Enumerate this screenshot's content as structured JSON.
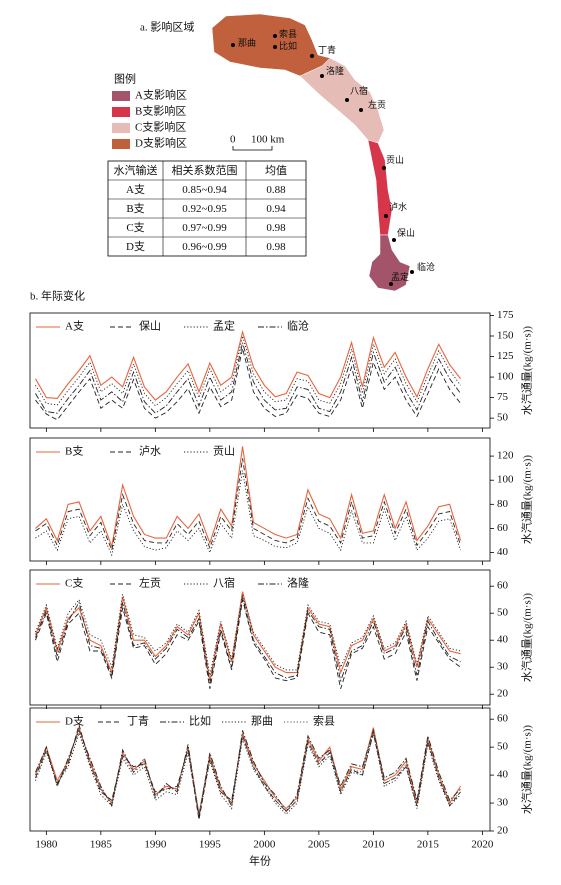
{
  "map": {
    "title": "a. 影响区域",
    "places": [
      "那曲",
      "索县",
      "比如",
      "丁青",
      "洛隆",
      "八宿",
      "左贡",
      "贡山",
      "泸水",
      "保山",
      "孟定",
      "临沧"
    ],
    "legend_title": "图例",
    "legend": [
      {
        "name": "A支影响区",
        "color": "#a3546a"
      },
      {
        "name": "B支影响区",
        "color": "#d7354a"
      },
      {
        "name": "C支影响区",
        "color": "#e6bcb6"
      },
      {
        "name": "D支影响区",
        "color": "#c0603c"
      }
    ],
    "scale_zero": "0",
    "scale_label": "100 km"
  },
  "table": {
    "header": [
      "水汽输送",
      "相关系数范围",
      "均值"
    ],
    "rows": [
      [
        "A支",
        "0.85~0.94",
        "0.88"
      ],
      [
        "B支",
        "0.92~0.95",
        "0.94"
      ],
      [
        "C支",
        "0.97~0.99",
        "0.98"
      ],
      [
        "D支",
        "0.96~0.99",
        "0.98"
      ]
    ]
  },
  "section_title": "b. 年际变化",
  "chart_data": [
    {
      "type": "line",
      "ylabel": "水汽通量(kg/(m·s))",
      "xlim": [
        1978.5,
        2020.7
      ],
      "ylim": [
        38,
        178
      ],
      "yticks": [
        50,
        75,
        100,
        125,
        150,
        175
      ],
      "x": [
        1979,
        1980,
        1981,
        1982,
        1983,
        1984,
        1985,
        1986,
        1987,
        1988,
        1989,
        1990,
        1991,
        1992,
        1993,
        1994,
        1995,
        1996,
        1997,
        1998,
        1999,
        2000,
        2001,
        2002,
        2003,
        2004,
        2005,
        2006,
        2007,
        2008,
        2009,
        2010,
        2011,
        2012,
        2013,
        2014,
        2015,
        2016,
        2017,
        2018
      ],
      "series": [
        {
          "name": "A支",
          "color": "#e8643c",
          "dash": "solid",
          "values": [
            98,
            75,
            74,
            92,
            108,
            126,
            90,
            100,
            88,
            124,
            88,
            72,
            82,
            100,
            116,
            82,
            117,
            90,
            100,
            155,
            112,
            90,
            76,
            80,
            106,
            102,
            80,
            75,
            100,
            142,
            88,
            148,
            112,
            130,
            100,
            76,
            110,
            140,
            115,
            98
          ]
        },
        {
          "name": "保山",
          "color": "#222222",
          "dash": "dashed",
          "values": [
            72,
            55,
            48,
            65,
            82,
            98,
            62,
            72,
            62,
            97,
            62,
            50,
            57,
            70,
            86,
            56,
            88,
            64,
            72,
            135,
            82,
            62,
            52,
            56,
            78,
            74,
            56,
            52,
            72,
            112,
            62,
            118,
            85,
            100,
            72,
            52,
            80,
            110,
            85,
            68
          ]
        },
        {
          "name": "孟定",
          "color": "#222222",
          "dash": "dotted",
          "values": [
            90,
            68,
            66,
            84,
            100,
            118,
            82,
            92,
            80,
            116,
            80,
            65,
            75,
            92,
            108,
            75,
            110,
            82,
            92,
            150,
            104,
            82,
            70,
            72,
            98,
            95,
            72,
            68,
            92,
            134,
            80,
            140,
            104,
            122,
            92,
            70,
            102,
            132,
            108,
            90
          ]
        },
        {
          "name": "临沧",
          "color": "#222222",
          "dash": "dashdot",
          "values": [
            80,
            58,
            56,
            74,
            90,
            108,
            72,
            82,
            70,
            106,
            70,
            56,
            65,
            82,
            98,
            65,
            100,
            72,
            82,
            142,
            94,
            72,
            60,
            62,
            88,
            85,
            62,
            58,
            82,
            124,
            70,
            130,
            94,
            112,
            82,
            60,
            92,
            122,
            98,
            80
          ]
        }
      ]
    },
    {
      "type": "line",
      "ylabel": "水汽通量(kg/(m·s))",
      "xlim": [
        1978.5,
        2020.7
      ],
      "ylim": [
        33,
        135
      ],
      "yticks": [
        40,
        60,
        80,
        100,
        120
      ],
      "x": [
        1979,
        1980,
        1981,
        1982,
        1983,
        1984,
        1985,
        1986,
        1987,
        1988,
        1989,
        1990,
        1991,
        1992,
        1993,
        1994,
        1995,
        1996,
        1997,
        1998,
        1999,
        2000,
        2001,
        2002,
        2003,
        2004,
        2005,
        2006,
        2007,
        2008,
        2009,
        2010,
        2011,
        2012,
        2013,
        2014,
        2015,
        2016,
        2017,
        2018
      ],
      "series": [
        {
          "name": "B支",
          "color": "#e8643c",
          "dash": "solid",
          "values": [
            60,
            68,
            50,
            80,
            82,
            58,
            70,
            45,
            96,
            70,
            55,
            52,
            52,
            70,
            60,
            72,
            48,
            76,
            62,
            128,
            65,
            60,
            55,
            52,
            55,
            92,
            72,
            68,
            52,
            88,
            56,
            58,
            88,
            60,
            82,
            50,
            62,
            78,
            80,
            50
          ]
        },
        {
          "name": "泸水",
          "color": "#222222",
          "dash": "dashed",
          "values": [
            58,
            64,
            46,
            74,
            76,
            54,
            65,
            42,
            88,
            64,
            50,
            48,
            48,
            64,
            55,
            66,
            44,
            70,
            58,
            118,
            60,
            55,
            50,
            48,
            52,
            85,
            66,
            62,
            48,
            82,
            52,
            54,
            82,
            56,
            76,
            46,
            58,
            72,
            74,
            46
          ]
        },
        {
          "name": "贡山",
          "color": "#222222",
          "dash": "dotted",
          "values": [
            52,
            58,
            42,
            68,
            70,
            48,
            58,
            38,
            80,
            58,
            45,
            42,
            44,
            58,
            50,
            60,
            40,
            64,
            52,
            108,
            54,
            50,
            45,
            44,
            48,
            78,
            60,
            56,
            42,
            75,
            48,
            48,
            76,
            50,
            70,
            42,
            52,
            66,
            68,
            42
          ]
        }
      ]
    },
    {
      "type": "line",
      "ylabel": "水汽通量(kg/(m·s))",
      "xlim": [
        1978.5,
        2020.7
      ],
      "ylim": [
        16,
        66
      ],
      "yticks": [
        20,
        30,
        40,
        50,
        60
      ],
      "x": [
        1979,
        1980,
        1981,
        1982,
        1983,
        1984,
        1985,
        1986,
        1987,
        1988,
        1989,
        1990,
        1991,
        1992,
        1993,
        1994,
        1995,
        1996,
        1997,
        1998,
        1999,
        2000,
        2001,
        2002,
        2003,
        2004,
        2005,
        2006,
        2007,
        2008,
        2009,
        2010,
        2011,
        2012,
        2013,
        2014,
        2015,
        2016,
        2017,
        2018
      ],
      "series": [
        {
          "name": "C支",
          "color": "#e8643c",
          "dash": "solid",
          "values": [
            42,
            52,
            36,
            48,
            52,
            40,
            38,
            28,
            56,
            40,
            40,
            34,
            38,
            45,
            42,
            50,
            25,
            46,
            32,
            58,
            42,
            36,
            30,
            28,
            28,
            52,
            46,
            45,
            28,
            38,
            40,
            48,
            36,
            38,
            46,
            30,
            48,
            42,
            36,
            35
          ]
        },
        {
          "name": "左贡",
          "color": "#222222",
          "dash": "dashed",
          "values": [
            40,
            50,
            32,
            46,
            50,
            36,
            36,
            26,
            52,
            37,
            38,
            31,
            35,
            42,
            40,
            47,
            22,
            43,
            29,
            55,
            39,
            33,
            26,
            25,
            26,
            50,
            43,
            42,
            22,
            35,
            37,
            45,
            33,
            35,
            43,
            25,
            45,
            39,
            33,
            30
          ]
        },
        {
          "name": "八宿",
          "color": "#222222",
          "dash": "dotted",
          "values": [
            43,
            53,
            37,
            50,
            55,
            42,
            40,
            30,
            57,
            42,
            41,
            36,
            39,
            46,
            43,
            51,
            27,
            47,
            33,
            57,
            43,
            37,
            31,
            29,
            29,
            53,
            47,
            46,
            30,
            39,
            41,
            49,
            37,
            39,
            47,
            31,
            49,
            43,
            37,
            36
          ]
        },
        {
          "name": "洛隆",
          "color": "#222222",
          "dash": "dashdot",
          "values": [
            41,
            51,
            34,
            47,
            54,
            38,
            37,
            27,
            54,
            38,
            39,
            33,
            37,
            44,
            41,
            48,
            24,
            44,
            30,
            56,
            40,
            34,
            28,
            26,
            27,
            51,
            45,
            44,
            25,
            36,
            38,
            47,
            35,
            37,
            45,
            27,
            47,
            40,
            34,
            32
          ]
        }
      ]
    },
    {
      "type": "line",
      "ylabel": "水汽通量(kg/(m·s))",
      "xlabel": "年份",
      "xlim": [
        1978.5,
        2020.7
      ],
      "xticks": [
        1980,
        1985,
        1990,
        1995,
        2000,
        2005,
        2010,
        2015,
        2020
      ],
      "ylim": [
        20,
        64
      ],
      "yticks": [
        20,
        30,
        40,
        50,
        60
      ],
      "x": [
        1979,
        1980,
        1981,
        1982,
        1983,
        1984,
        1985,
        1986,
        1987,
        1988,
        1989,
        1990,
        1991,
        1992,
        1993,
        1994,
        1995,
        1996,
        1997,
        1998,
        1999,
        2000,
        2001,
        2002,
        2003,
        2004,
        2005,
        2006,
        2007,
        2008,
        2009,
        2010,
        2011,
        2012,
        2013,
        2014,
        2015,
        2016,
        2017,
        2018
      ],
      "series": [
        {
          "name": "D支",
          "color": "#e8643c",
          "dash": "solid",
          "values": [
            40,
            50,
            38,
            45,
            57,
            45,
            35,
            30,
            48,
            42,
            45,
            33,
            36,
            35,
            50,
            26,
            47,
            35,
            30,
            55,
            44,
            38,
            32,
            28,
            32,
            53,
            45,
            50,
            35,
            43,
            42,
            57,
            38,
            40,
            45,
            30,
            53,
            40,
            30,
            36
          ]
        },
        {
          "name": "丁青",
          "color": "#222222",
          "dash": "dashed",
          "values": [
            39,
            49,
            37,
            44,
            58,
            44,
            34,
            31,
            47,
            43,
            44,
            34,
            35,
            36,
            49,
            24,
            46,
            34,
            31,
            54,
            43,
            36,
            31,
            27,
            31,
            52,
            44,
            48,
            34,
            42,
            40,
            55,
            37,
            39,
            43,
            29,
            52,
            39,
            29,
            34
          ]
        },
        {
          "name": "比如",
          "color": "#222222",
          "dash": "dashdot",
          "values": [
            41,
            50,
            36,
            46,
            56,
            46,
            36,
            29,
            49,
            41,
            46,
            32,
            37,
            34,
            51,
            25,
            48,
            36,
            29,
            56,
            45,
            37,
            33,
            27,
            33,
            54,
            46,
            49,
            36,
            44,
            43,
            56,
            39,
            41,
            46,
            31,
            54,
            41,
            31,
            35
          ]
        },
        {
          "name": "那曲",
          "color": "#222222",
          "dash": "dotted",
          "values": [
            38,
            48,
            37,
            43,
            55,
            43,
            33,
            29,
            46,
            40,
            43,
            31,
            34,
            33,
            48,
            25,
            45,
            33,
            28,
            53,
            42,
            36,
            30,
            26,
            30,
            51,
            43,
            47,
            33,
            41,
            40,
            55,
            36,
            38,
            43,
            28,
            51,
            38,
            29,
            33
          ]
        },
        {
          "name": "索县",
          "color": "#555555",
          "dash": "dotted",
          "values": [
            40,
            49,
            36,
            45,
            56,
            44,
            35,
            30,
            47,
            41,
            44,
            33,
            35,
            35,
            49,
            26,
            46,
            34,
            30,
            54,
            43,
            37,
            31,
            27,
            31,
            52,
            44,
            49,
            34,
            42,
            41,
            56,
            37,
            39,
            44,
            29,
            52,
            39,
            30,
            34
          ]
        }
      ]
    }
  ]
}
